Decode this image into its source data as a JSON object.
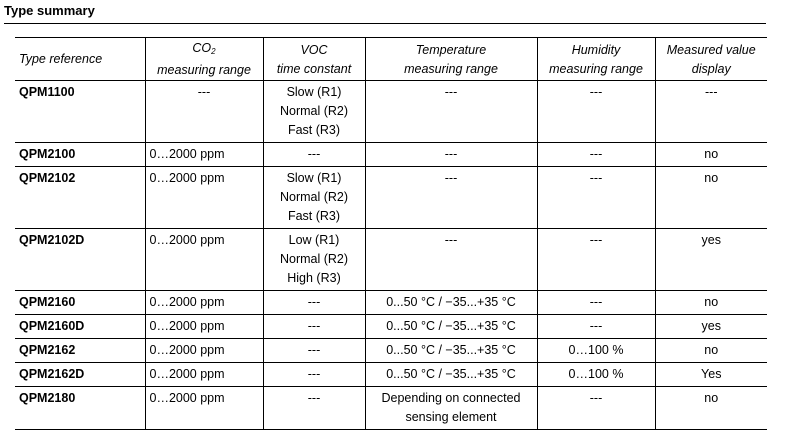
{
  "section_title": "Type summary",
  "headers": {
    "type_reference": "Type reference",
    "co2_line1_prefix": "CO",
    "co2_subscript": "2",
    "co2_line2": "measuring range",
    "voc_line1": "VOC",
    "voc_line2": "time constant",
    "temp_line1": "Temperature",
    "temp_line2": "measuring range",
    "hum_line1": "Humidity",
    "hum_line2": "measuring range",
    "display_line1": "Measured value",
    "display_line2": "display"
  },
  "rows": [
    {
      "type": "QPM1100",
      "co2": "---",
      "voc": [
        "Slow (R1)",
        "Normal (R2)",
        "Fast (R3)"
      ],
      "temp": [
        "---"
      ],
      "hum": "---",
      "display": "---"
    },
    {
      "type": "QPM2100",
      "co2": "0…2000 ppm",
      "voc": [
        "---"
      ],
      "temp": [
        "---"
      ],
      "hum": "---",
      "display": "no"
    },
    {
      "type": "QPM2102",
      "co2": "0…2000 ppm",
      "voc": [
        "Slow (R1)",
        "Normal (R2)",
        "Fast (R3)"
      ],
      "temp": [
        "---"
      ],
      "hum": "---",
      "display": "no"
    },
    {
      "type": "QPM2102D",
      "co2": "0…2000 ppm",
      "voc": [
        "Low (R1)",
        "Normal (R2)",
        "High (R3)"
      ],
      "temp": [
        "---"
      ],
      "hum": "---",
      "display": "yes"
    },
    {
      "type": "QPM2160",
      "co2": "0…2000 ppm",
      "voc": [
        "---"
      ],
      "temp": [
        "0...50 °C / −35...+35 °C"
      ],
      "hum": "---",
      "display": "no"
    },
    {
      "type": "QPM2160D",
      "co2": "0…2000 ppm",
      "voc": [
        "---"
      ],
      "temp": [
        "0...50 °C / −35...+35 °C"
      ],
      "hum": "---",
      "display": "yes"
    },
    {
      "type": "QPM2162",
      "co2": "0…2000 ppm",
      "voc": [
        "---"
      ],
      "temp": [
        "0...50 °C / −35...+35 °C"
      ],
      "hum": "0…100 %",
      "display": "no"
    },
    {
      "type": "QPM2162D",
      "co2": "0…2000 ppm",
      "voc": [
        "---"
      ],
      "temp": [
        "0...50 °C / −35...+35 °C"
      ],
      "hum": "0…100 %",
      "display": "Yes"
    },
    {
      "type": "QPM2180",
      "co2": "0…2000 ppm",
      "voc": [
        "---"
      ],
      "temp": [
        "Depending on connected",
        "sensing element"
      ],
      "hum": "---",
      "display": "no"
    }
  ]
}
